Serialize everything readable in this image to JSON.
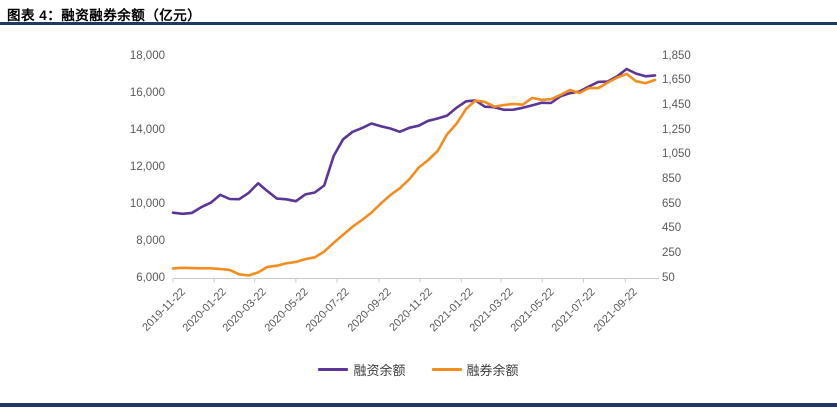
{
  "header": {
    "title": "图表 4：融资融券余额（亿元）"
  },
  "colors": {
    "accent_bar": "#1F3864",
    "financing": "#5B3597",
    "securities_lending": "#F28D1E",
    "axis_text": "#595959",
    "axis_line": "#C9C9C9"
  },
  "legend": {
    "items": [
      {
        "label": "融资余额",
        "color": "#5B3597"
      },
      {
        "label": "融券余额",
        "color": "#F28D1E"
      }
    ]
  },
  "chart_data": {
    "type": "line",
    "title": "图表 4：融资融券余额（亿元）",
    "unit": "亿元",
    "grid": false,
    "legend_position": "bottom",
    "x": [
      "2019-11-22",
      "2019-12-06",
      "2019-12-20",
      "2020-01-03",
      "2020-01-17",
      "2020-01-31",
      "2020-02-14",
      "2020-02-28",
      "2020-03-13",
      "2020-03-27",
      "2020-04-10",
      "2020-04-24",
      "2020-05-08",
      "2020-05-22",
      "2020-06-05",
      "2020-06-19",
      "2020-07-03",
      "2020-07-17",
      "2020-07-31",
      "2020-08-14",
      "2020-08-28",
      "2020-09-11",
      "2020-09-25",
      "2020-10-09",
      "2020-10-23",
      "2020-11-06",
      "2020-11-20",
      "2020-12-04",
      "2020-12-18",
      "2021-01-01",
      "2021-01-15",
      "2021-01-29",
      "2021-02-12",
      "2021-02-26",
      "2021-03-12",
      "2021-03-26",
      "2021-04-09",
      "2021-04-23",
      "2021-05-07",
      "2021-05-21",
      "2021-06-04",
      "2021-06-18",
      "2021-07-02",
      "2021-07-16",
      "2021-07-30",
      "2021-08-13",
      "2021-08-27",
      "2021-09-10",
      "2021-09-24",
      "2021-10-08",
      "2021-10-22",
      "2021-11-05"
    ],
    "series": [
      {
        "name": "融资余额",
        "axis": "left",
        "color": "#5B3597",
        "values": [
          9530,
          9470,
          9520,
          9830,
          10070,
          10500,
          10270,
          10260,
          10600,
          11120,
          10690,
          10290,
          10255,
          10150,
          10520,
          10620,
          11000,
          12600,
          13500,
          13900,
          14100,
          14350,
          14200,
          14080,
          13900,
          14120,
          14230,
          14500,
          14620,
          14780,
          15200,
          15550,
          15600,
          15260,
          15230,
          15090,
          15100,
          15200,
          15330,
          15470,
          15460,
          15820,
          15990,
          16080,
          16350,
          16600,
          16620,
          16900,
          17300,
          17050,
          16900,
          16950
        ]
      },
      {
        "name": "融券余额",
        "axis": "right",
        "color": "#F28D1E",
        "values": [
          128,
          133,
          130,
          129,
          129,
          123,
          116,
          80,
          70,
          95,
          140,
          150,
          169,
          180,
          203,
          218,
          264,
          335,
          400,
          466,
          520,
          580,
          655,
          723,
          777,
          850,
          945,
          1007,
          1080,
          1215,
          1300,
          1420,
          1488,
          1478,
          1440,
          1453,
          1462,
          1455,
          1510,
          1495,
          1500,
          1535,
          1574,
          1550,
          1590,
          1590,
          1635,
          1675,
          1705,
          1645,
          1630,
          1655
        ]
      }
    ],
    "left_axis": {
      "min": 6000,
      "max": 18000,
      "tick_step": 2000,
      "ticks": [
        "18,000",
        "16,000",
        "14,000",
        "12,000",
        "10,000",
        "8,000",
        "6,000"
      ]
    },
    "right_axis": {
      "min": 50,
      "max": 1850,
      "tick_step": 200,
      "ticks": [
        "1,850",
        "1,650",
        "1,450",
        "1,250",
        "1,050",
        "850",
        "650",
        "450",
        "250",
        "50"
      ]
    },
    "x_tick_labels": [
      "2019-11-22",
      "2020-01-22",
      "2020-03-22",
      "2020-05-22",
      "2020-07-22",
      "2020-09-22",
      "2020-11-22",
      "2021-01-22",
      "2021-03-22",
      "2021-05-22",
      "2021-07-22",
      "2021-09-22"
    ]
  }
}
